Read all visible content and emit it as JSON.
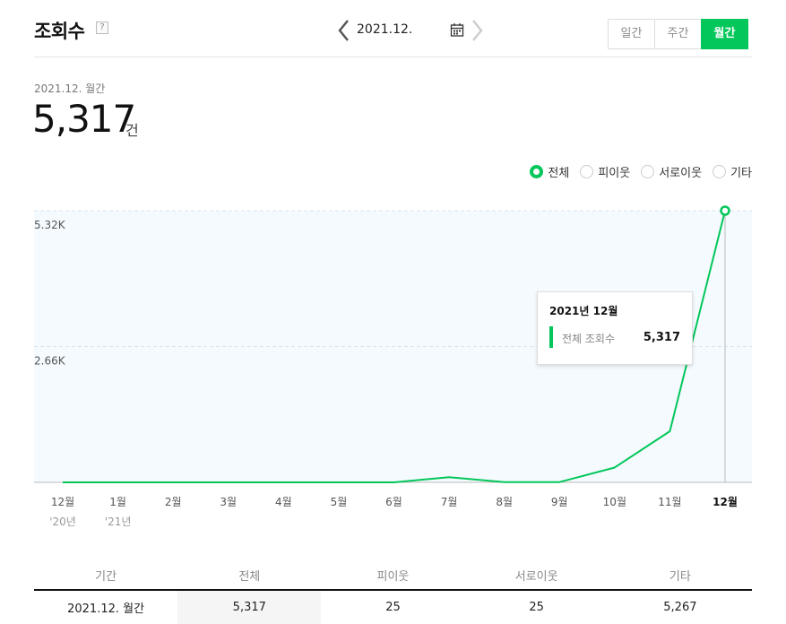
{
  "header": {
    "title": "조회수",
    "help_label": "?",
    "date_label": "2021.12.",
    "tabs": [
      {
        "label": "일간",
        "active": false
      },
      {
        "label": "주간",
        "active": false
      },
      {
        "label": "월간",
        "active": true
      }
    ]
  },
  "summary": {
    "period": "2021.12. 월간",
    "value": "5,317",
    "unit": "건"
  },
  "legend": [
    {
      "label": "전체",
      "checked": true
    },
    {
      "label": "피이웃",
      "checked": false
    },
    {
      "label": "서로이웃",
      "checked": false
    },
    {
      "label": "기타",
      "checked": false
    }
  ],
  "colors": {
    "accent": "#03c75a",
    "plot_bg": "#f5fafe",
    "grid": "#d7e6f0"
  },
  "chart_data": {
    "type": "line",
    "categories": [
      "12월",
      "1월",
      "2월",
      "3월",
      "4월",
      "5월",
      "6월",
      "7월",
      "8월",
      "9월",
      "10월",
      "11월",
      "12월"
    ],
    "sub_labels": [
      "'20년",
      "'21년",
      "",
      "",
      "",
      "",
      "",
      "",
      "",
      "",
      "",
      "",
      ""
    ],
    "series": [
      {
        "name": "전체 조회수",
        "values": [
          0,
          0,
          0,
          0,
          0,
          0,
          0,
          100,
          5,
          5,
          290,
          1000,
          5317
        ]
      }
    ],
    "ytick_labels": [
      "5.32K",
      "2.66K"
    ],
    "ytick_values": [
      5317,
      2658
    ],
    "ylim": [
      0,
      5317
    ],
    "grid": true,
    "highlight_index": 12
  },
  "tooltip": {
    "title": "2021년 12월",
    "label": "전체 조회수",
    "value": "5,317"
  },
  "table": {
    "headers": [
      "기간",
      "전체",
      "피이웃",
      "서로이웃",
      "기타"
    ],
    "rows": [
      [
        "2021.12. 월간",
        "5,317",
        "25",
        "25",
        "5,267"
      ]
    ]
  }
}
